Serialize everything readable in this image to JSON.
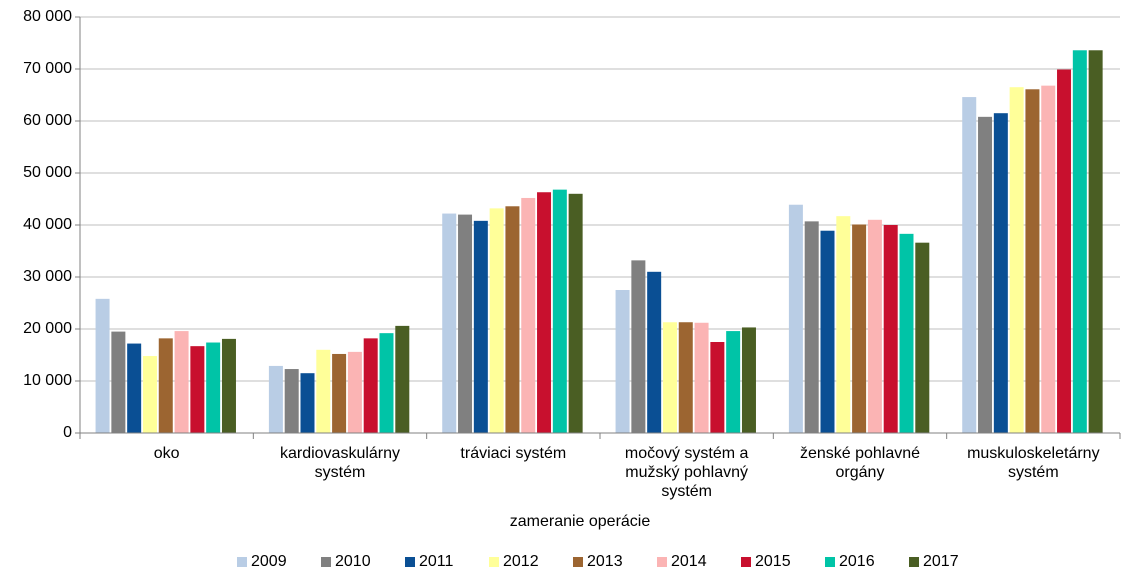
{
  "chart_data": {
    "type": "bar",
    "x_label": "zameranie operácie",
    "categories": [
      "oko",
      "kardiovaskulárny systém",
      "tráviaci systém",
      "močový systém a mužský pohlavný systém",
      "ženské pohlavné orgány",
      "muskuloskeletárny systém"
    ],
    "series": [
      {
        "name": "2009",
        "color": "#b9cde5",
        "values": [
          25800,
          12900,
          42200,
          27500,
          43900,
          64600
        ]
      },
      {
        "name": "2010",
        "color": "#808080",
        "values": [
          19500,
          12300,
          42000,
          33200,
          40700,
          60800
        ]
      },
      {
        "name": "2011",
        "color": "#0a4f94",
        "values": [
          17200,
          11500,
          40800,
          31000,
          38900,
          61500
        ]
      },
      {
        "name": "2012",
        "color": "#ffff99",
        "values": [
          14800,
          16000,
          43200,
          21300,
          41700,
          66500
        ]
      },
      {
        "name": "2013",
        "color": "#9c6531",
        "values": [
          18200,
          15200,
          43600,
          21300,
          40100,
          66100
        ]
      },
      {
        "name": "2014",
        "color": "#fbb4b4",
        "values": [
          19600,
          15600,
          45200,
          21200,
          41000,
          66800
        ]
      },
      {
        "name": "2015",
        "color": "#c8102e",
        "values": [
          16700,
          18200,
          46300,
          17500,
          40000,
          69900
        ]
      },
      {
        "name": "2016",
        "color": "#00c4a7",
        "values": [
          17400,
          19200,
          46800,
          19600,
          38300,
          73600
        ]
      },
      {
        "name": "2017",
        "color": "#4a5e23",
        "values": [
          18100,
          20600,
          46000,
          20300,
          36600,
          73600
        ]
      }
    ],
    "ylim": [
      0,
      80000
    ],
    "yticks": [
      0,
      {
        "value": 10000,
        "label": "10 000"
      },
      {
        "value": 20000,
        "label": "20 000"
      },
      {
        "value": 30000,
        "label": "30 000"
      },
      {
        "value": 40000,
        "label": "40 000"
      },
      {
        "value": 50000,
        "label": "50 000"
      },
      {
        "value": 60000,
        "label": "60 000"
      },
      {
        "value": 70000,
        "label": "70 000"
      },
      {
        "value": 80000,
        "label": "80 000"
      }
    ],
    "grid": true,
    "legend": "bottom"
  }
}
